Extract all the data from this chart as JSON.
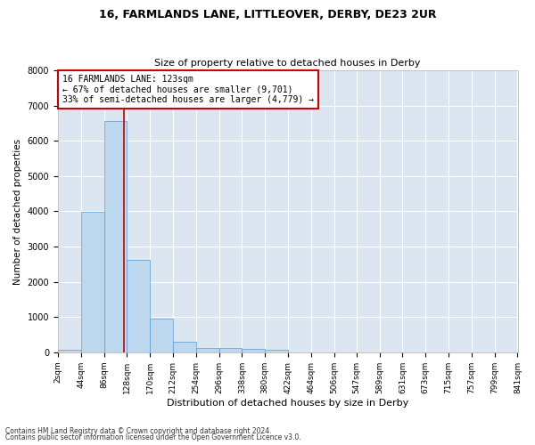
{
  "title1": "16, FARMLANDS LANE, LITTLEOVER, DERBY, DE23 2UR",
  "title2": "Size of property relative to detached houses in Derby",
  "xlabel": "Distribution of detached houses by size in Derby",
  "ylabel": "Number of detached properties",
  "footnote1": "Contains HM Land Registry data © Crown copyright and database right 2024.",
  "footnote2": "Contains public sector information licensed under the Open Government Licence v3.0.",
  "bar_color": "#bdd7ee",
  "bar_edge_color": "#5b9bd5",
  "plot_bg_color": "#dce6f1",
  "fig_bg_color": "#ffffff",
  "grid_color": "#ffffff",
  "annotation_box_edgecolor": "#cc0000",
  "annotation_line_color": "#cc0000",
  "bin_edges": [
    2,
    44,
    86,
    128,
    170,
    212,
    254,
    296,
    338,
    380,
    422,
    464,
    506,
    547,
    589,
    631,
    673,
    715,
    757,
    799,
    841
  ],
  "bar_heights": [
    80,
    3980,
    6560,
    2620,
    960,
    310,
    120,
    115,
    95,
    80,
    0,
    0,
    0,
    0,
    0,
    0,
    0,
    0,
    0,
    0
  ],
  "property_size": 123,
  "annotation_line1": "16 FARMLANDS LANE: 123sqm",
  "annotation_line2": "← 67% of detached houses are smaller (9,701)",
  "annotation_line3": "33% of semi-detached houses are larger (4,779) →",
  "ylim": [
    0,
    8000
  ],
  "yticks": [
    0,
    1000,
    2000,
    3000,
    4000,
    5000,
    6000,
    7000,
    8000
  ]
}
